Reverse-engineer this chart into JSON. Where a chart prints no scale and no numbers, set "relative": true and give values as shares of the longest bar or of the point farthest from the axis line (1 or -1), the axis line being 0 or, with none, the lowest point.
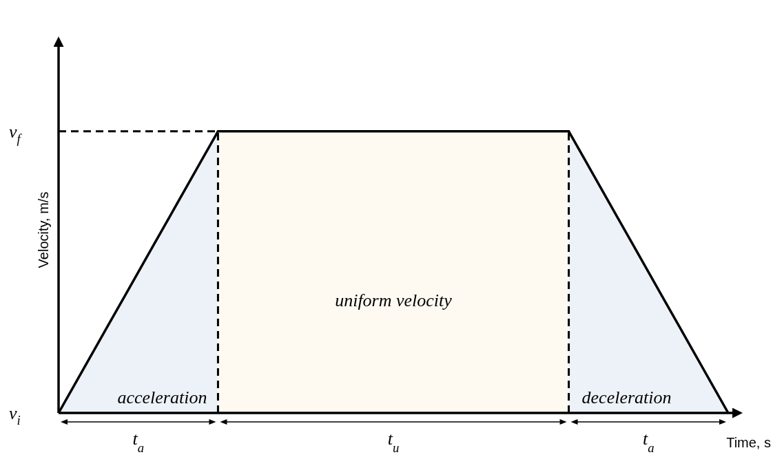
{
  "chart_data": {
    "type": "area",
    "relative": true,
    "ylabel": "Velocity, m/s",
    "xlabel": "Time, s",
    "categories": [
      null,
      null,
      null,
      null,
      null,
      "t$_{a}$",
      null,
      null,
      null,
      null,
      null,
      null,
      null,
      null,
      null,
      null,
      null,
      null,
      null,
      null,
      null,
      "t$_{u}$",
      null,
      null,
      null,
      null,
      null,
      null,
      null,
      null,
      null,
      null,
      null,
      null,
      null,
      null,
      null,
      "t$_{a}$",
      null,
      null,
      null,
      null,
      null
    ],
    "series": [
      {
        "name": "acceleration",
        "color": "#edf2f9",
        "values": [
          0,
          0.1,
          0.2,
          0.3,
          0.4,
          0.5,
          0.6,
          0.7,
          0.8,
          0.9,
          1,
          null,
          null,
          null,
          null,
          null,
          null,
          null,
          null,
          null,
          null,
          null,
          null,
          null,
          null,
          null,
          null,
          null,
          null,
          null,
          null,
          null,
          null,
          null,
          null,
          null,
          null,
          null,
          null,
          null,
          null,
          null,
          null
        ]
      },
      {
        "name": "uniform velocity",
        "color": "#fefaf2",
        "values": [
          null,
          null,
          null,
          null,
          null,
          null,
          null,
          null,
          null,
          null,
          1,
          1,
          1,
          1,
          1,
          1,
          1,
          1,
          1,
          1,
          1,
          1,
          1,
          1,
          1,
          1,
          1,
          1,
          1,
          1,
          1,
          1,
          1,
          null,
          null,
          null,
          null,
          null,
          null,
          null,
          null,
          null,
          null
        ]
      },
      {
        "name": "deceleration",
        "color": "#edf2f9",
        "values": [
          null,
          null,
          null,
          null,
          null,
          null,
          null,
          null,
          null,
          null,
          null,
          null,
          null,
          null,
          null,
          null,
          null,
          null,
          null,
          null,
          null,
          null,
          null,
          null,
          null,
          null,
          null,
          null,
          null,
          null,
          null,
          null,
          1,
          0.9,
          0.8,
          0.7,
          0.6,
          0.5,
          0.4,
          0.3,
          0.2,
          0.1,
          0
        ]
      }
    ],
    "ref_lines": [
      {
        "axis": "y",
        "value": 1,
        "label": "v$_{f}$",
        "line_style": "dashed",
        "color": "#000000"
      }
    ],
    "annotations": [
      "v$_{i}$"
    ]
  }
}
